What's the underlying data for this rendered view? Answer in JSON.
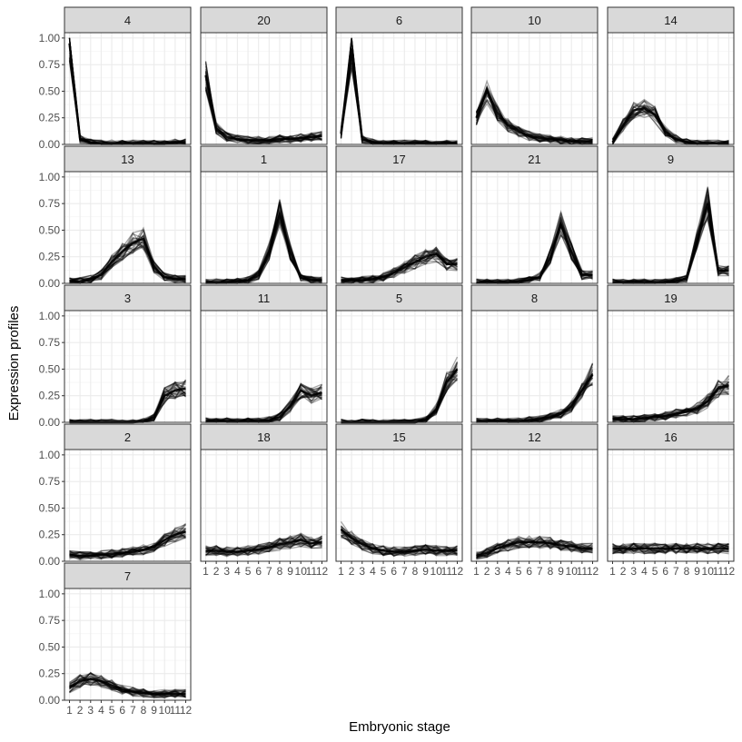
{
  "chart_data": {
    "type": "line",
    "xlabel": "Embryonic stage",
    "ylabel": "Expression profiles",
    "x_ticks": [
      "1",
      "2",
      "3",
      "4",
      "5",
      "6",
      "7",
      "8",
      "9",
      "10",
      "11",
      "12"
    ],
    "y_ticks": [
      "0.00",
      "0.25",
      "0.50",
      "0.75",
      "1.00"
    ],
    "ylim": [
      0,
      1.05
    ],
    "grid": true,
    "line_color": "#000000",
    "line_opacity": 0.35,
    "panels": [
      {
        "label": "4",
        "profile": [
          0.95,
          0.05,
          0.02,
          0.01,
          0.01,
          0.01,
          0.01,
          0.01,
          0.01,
          0.01,
          0.02,
          0.02
        ]
      },
      {
        "label": "20",
        "profile": [
          0.65,
          0.15,
          0.07,
          0.05,
          0.04,
          0.04,
          0.04,
          0.05,
          0.05,
          0.06,
          0.07,
          0.08
        ]
      },
      {
        "label": "6",
        "profile": [
          0.1,
          0.9,
          0.05,
          0.02,
          0.01,
          0.01,
          0.01,
          0.01,
          0.01,
          0.01,
          0.01,
          0.01
        ]
      },
      {
        "label": "10",
        "profile": [
          0.25,
          0.5,
          0.3,
          0.18,
          0.12,
          0.08,
          0.06,
          0.05,
          0.04,
          0.03,
          0.03,
          0.03
        ]
      },
      {
        "label": "14",
        "profile": [
          0.02,
          0.18,
          0.32,
          0.34,
          0.28,
          0.12,
          0.05,
          0.02,
          0.01,
          0.01,
          0.01,
          0.01
        ]
      },
      {
        "label": "13",
        "profile": [
          0.02,
          0.02,
          0.04,
          0.08,
          0.2,
          0.3,
          0.38,
          0.42,
          0.15,
          0.06,
          0.04,
          0.04
        ]
      },
      {
        "label": "1",
        "profile": [
          0.01,
          0.01,
          0.01,
          0.02,
          0.03,
          0.08,
          0.3,
          0.65,
          0.3,
          0.05,
          0.03,
          0.03
        ]
      },
      {
        "label": "17",
        "profile": [
          0.03,
          0.03,
          0.03,
          0.04,
          0.06,
          0.1,
          0.15,
          0.2,
          0.25,
          0.28,
          0.18,
          0.18
        ]
      },
      {
        "label": "21",
        "profile": [
          0.01,
          0.01,
          0.01,
          0.01,
          0.02,
          0.03,
          0.06,
          0.25,
          0.55,
          0.3,
          0.08,
          0.08
        ]
      },
      {
        "label": "9",
        "profile": [
          0.01,
          0.01,
          0.01,
          0.01,
          0.01,
          0.01,
          0.02,
          0.05,
          0.4,
          0.75,
          0.12,
          0.12
        ]
      },
      {
        "label": "3",
        "profile": [
          0.0,
          0.0,
          0.0,
          0.0,
          0.0,
          0.0,
          0.0,
          0.01,
          0.05,
          0.25,
          0.3,
          0.32
        ]
      },
      {
        "label": "11",
        "profile": [
          0.01,
          0.01,
          0.01,
          0.01,
          0.01,
          0.01,
          0.02,
          0.05,
          0.15,
          0.3,
          0.25,
          0.28
        ]
      },
      {
        "label": "5",
        "profile": [
          0.0,
          0.0,
          0.0,
          0.0,
          0.0,
          0.0,
          0.0,
          0.0,
          0.02,
          0.12,
          0.38,
          0.5
        ]
      },
      {
        "label": "8",
        "profile": [
          0.01,
          0.01,
          0.01,
          0.01,
          0.01,
          0.02,
          0.03,
          0.05,
          0.08,
          0.15,
          0.3,
          0.45
        ]
      },
      {
        "label": "19",
        "profile": [
          0.03,
          0.03,
          0.03,
          0.04,
          0.05,
          0.06,
          0.08,
          0.1,
          0.13,
          0.2,
          0.32,
          0.35
        ]
      },
      {
        "label": "2",
        "profile": [
          0.06,
          0.05,
          0.05,
          0.06,
          0.07,
          0.08,
          0.09,
          0.11,
          0.14,
          0.2,
          0.25,
          0.28
        ]
      },
      {
        "label": "18",
        "profile": [
          0.1,
          0.1,
          0.09,
          0.09,
          0.1,
          0.11,
          0.13,
          0.16,
          0.18,
          0.2,
          0.17,
          0.18
        ]
      },
      {
        "label": "15",
        "profile": [
          0.3,
          0.22,
          0.16,
          0.12,
          0.1,
          0.09,
          0.09,
          0.1,
          0.11,
          0.1,
          0.1,
          0.1
        ]
      },
      {
        "label": "12",
        "profile": [
          0.05,
          0.08,
          0.12,
          0.15,
          0.18,
          0.18,
          0.18,
          0.17,
          0.15,
          0.14,
          0.12,
          0.12
        ]
      },
      {
        "label": "16",
        "profile": [
          0.12,
          0.12,
          0.12,
          0.12,
          0.12,
          0.12,
          0.12,
          0.12,
          0.12,
          0.12,
          0.12,
          0.12
        ]
      },
      {
        "label": "7",
        "profile": [
          0.12,
          0.18,
          0.2,
          0.18,
          0.14,
          0.1,
          0.08,
          0.07,
          0.06,
          0.06,
          0.06,
          0.06
        ]
      }
    ]
  }
}
